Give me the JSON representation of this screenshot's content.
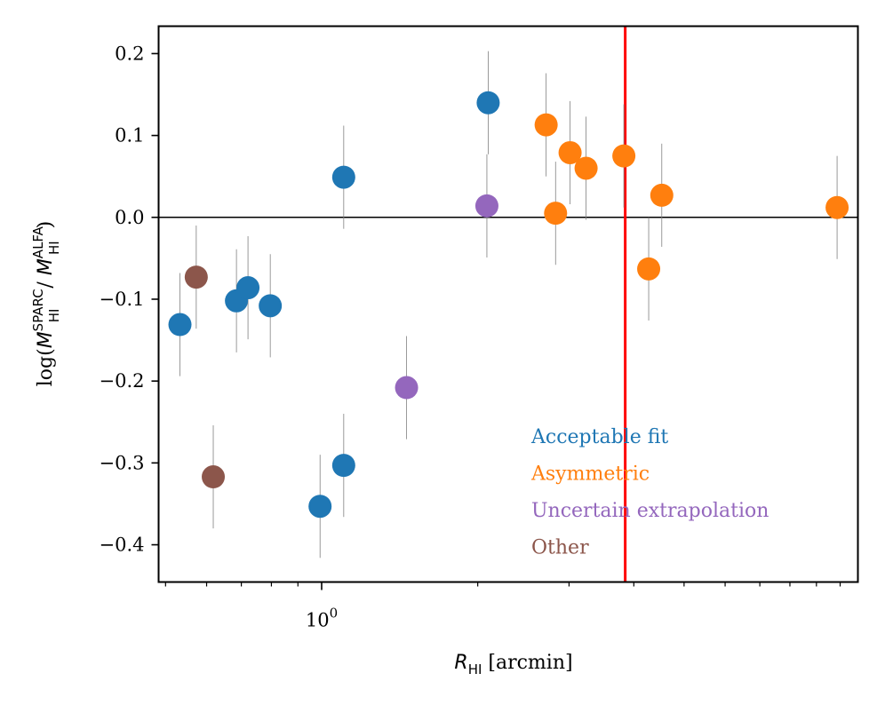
{
  "chart_data": {
    "type": "scatter",
    "title": "",
    "xlabel": {
      "var": "R",
      "sub": "HI",
      "unit": "[arcmin]"
    },
    "ylabel": {
      "prefix": "log(",
      "num_var": "M",
      "num_sup": "SPARC",
      "num_sub": "HI",
      "sep": " / ",
      "den_var": "M",
      "den_sup": "ALFA",
      "den_sub": "HI",
      "suffix": ")"
    },
    "xscale": "log",
    "xlim": [
      0.4848,
      10.82
    ],
    "ylim": [
      -0.4455,
      0.2335
    ],
    "x_ticks": [
      {
        "value": 1,
        "base": "10",
        "exp": "0"
      }
    ],
    "y_ticks": [
      {
        "value": 0.2,
        "label": "0.2"
      },
      {
        "value": 0.1,
        "label": "0.1"
      },
      {
        "value": 0.0,
        "label": "0.0"
      },
      {
        "value": -0.1,
        "label": "−0.1"
      },
      {
        "value": -0.2,
        "label": "−0.2"
      },
      {
        "value": -0.3,
        "label": "−0.3"
      },
      {
        "value": -0.4,
        "label": "−0.4"
      }
    ],
    "reference_lines": [
      {
        "orientation": "horizontal",
        "value": 0.0,
        "color": "#000000"
      },
      {
        "orientation": "vertical",
        "value": 3.85,
        "color": "#ff0000"
      }
    ],
    "series": [
      {
        "name": "Acceptable fit",
        "color": "#1f77b4",
        "points": [
          {
            "x": 0.533,
            "y": -0.131,
            "err": 0.063
          },
          {
            "x": 0.685,
            "y": -0.102,
            "err": 0.063
          },
          {
            "x": 0.721,
            "y": -0.086,
            "err": 0.063
          },
          {
            "x": 0.796,
            "y": -0.108,
            "err": 0.063
          },
          {
            "x": 0.993,
            "y": -0.353,
            "err": 0.063
          },
          {
            "x": 1.103,
            "y": 0.049,
            "err": 0.063
          },
          {
            "x": 1.103,
            "y": -0.303,
            "err": 0.063
          },
          {
            "x": 2.095,
            "y": 0.14,
            "err": 0.063
          }
        ]
      },
      {
        "name": "Asymmetric",
        "color": "#ff7f0e",
        "points": [
          {
            "x": 2.71,
            "y": 0.113,
            "err": 0.063
          },
          {
            "x": 2.826,
            "y": 0.005,
            "err": 0.063
          },
          {
            "x": 3.014,
            "y": 0.079,
            "err": 0.063
          },
          {
            "x": 3.236,
            "y": 0.06,
            "err": 0.063
          },
          {
            "x": 3.827,
            "y": 0.075,
            "err": 0.063
          },
          {
            "x": 4.273,
            "y": -0.063,
            "err": 0.063
          },
          {
            "x": 4.529,
            "y": 0.027,
            "err": 0.063
          },
          {
            "x": 9.865,
            "y": 0.012,
            "err": 0.063
          }
        ]
      },
      {
        "name": "Uncertain extrapolation",
        "color": "#9467bd",
        "points": [
          {
            "x": 2.083,
            "y": 0.014,
            "err": 0.063
          },
          {
            "x": 1.458,
            "y": -0.208,
            "err": 0.063
          }
        ]
      },
      {
        "name": "Other",
        "color": "#8c564b",
        "points": [
          {
            "x": 0.573,
            "y": -0.073,
            "err": 0.063
          },
          {
            "x": 0.618,
            "y": -0.317,
            "err": 0.063
          }
        ]
      }
    ],
    "legend": {
      "placement": "lower-right",
      "style": "colored-text",
      "entries": [
        "Acceptable fit",
        "Asymmetric",
        "Uncertain extrapolation",
        "Other"
      ]
    }
  }
}
